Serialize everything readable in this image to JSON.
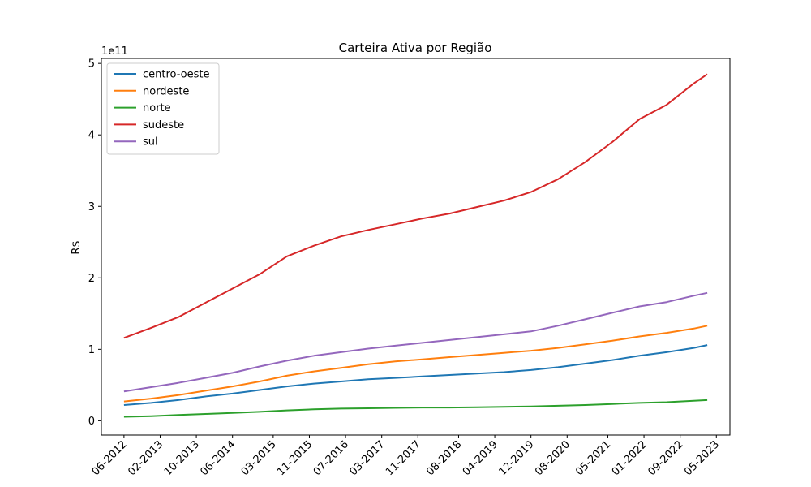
{
  "chart_data": {
    "type": "line",
    "title": "Carteira Ativa por Região",
    "xlabel": "",
    "ylabel": "R$",
    "y_scale_label": "1e11",
    "y_unit_multiplier": 100000000000,
    "ylim": [
      -0.2,
      5.07
    ],
    "xlim": [
      "2012-01",
      "2023-08"
    ],
    "x_ticks": [
      "06-2012",
      "02-2013",
      "10-2013",
      "06-2014",
      "03-2015",
      "11-2015",
      "07-2016",
      "03-2017",
      "11-2017",
      "08-2018",
      "04-2019",
      "12-2019",
      "08-2020",
      "05-2021",
      "01-2022",
      "09-2022",
      "05-2023"
    ],
    "y_ticks": [
      0,
      1,
      2,
      3,
      4,
      5
    ],
    "legend_position": "top-left",
    "x": [
      "2012-06",
      "2012-12",
      "2013-06",
      "2013-12",
      "2014-06",
      "2014-12",
      "2015-06",
      "2015-12",
      "2016-06",
      "2016-12",
      "2017-06",
      "2017-12",
      "2018-06",
      "2018-12",
      "2019-06",
      "2019-12",
      "2020-06",
      "2020-12",
      "2021-06",
      "2021-12",
      "2022-06",
      "2022-12",
      "2023-03"
    ],
    "series": [
      {
        "name": "centro-oeste",
        "color": "#1f77b4",
        "values": [
          0.22,
          0.25,
          0.29,
          0.34,
          0.38,
          0.43,
          0.48,
          0.52,
          0.55,
          0.58,
          0.6,
          0.62,
          0.64,
          0.66,
          0.68,
          0.71,
          0.75,
          0.8,
          0.85,
          0.91,
          0.96,
          1.02,
          1.06
        ]
      },
      {
        "name": "nordeste",
        "color": "#ff7f0e",
        "values": [
          0.27,
          0.31,
          0.36,
          0.42,
          0.48,
          0.55,
          0.63,
          0.69,
          0.74,
          0.79,
          0.83,
          0.86,
          0.89,
          0.92,
          0.95,
          0.98,
          1.02,
          1.07,
          1.12,
          1.18,
          1.23,
          1.29,
          1.33
        ]
      },
      {
        "name": "norte",
        "color": "#2ca02c",
        "values": [
          0.055,
          0.065,
          0.08,
          0.095,
          0.11,
          0.125,
          0.145,
          0.16,
          0.17,
          0.175,
          0.18,
          0.185,
          0.185,
          0.19,
          0.195,
          0.2,
          0.21,
          0.22,
          0.235,
          0.25,
          0.26,
          0.28,
          0.29
        ]
      },
      {
        "name": "sudeste",
        "color": "#d62728",
        "values": [
          1.16,
          1.3,
          1.45,
          1.65,
          1.85,
          2.05,
          2.3,
          2.45,
          2.58,
          2.67,
          2.75,
          2.83,
          2.9,
          2.99,
          3.08,
          3.2,
          3.38,
          3.62,
          3.9,
          4.22,
          4.42,
          4.72,
          4.85
        ]
      },
      {
        "name": "sul",
        "color": "#9467bd",
        "values": [
          0.41,
          0.47,
          0.53,
          0.6,
          0.67,
          0.76,
          0.84,
          0.91,
          0.96,
          1.01,
          1.05,
          1.09,
          1.13,
          1.17,
          1.21,
          1.25,
          1.33,
          1.42,
          1.51,
          1.6,
          1.66,
          1.75,
          1.79
        ]
      }
    ]
  }
}
